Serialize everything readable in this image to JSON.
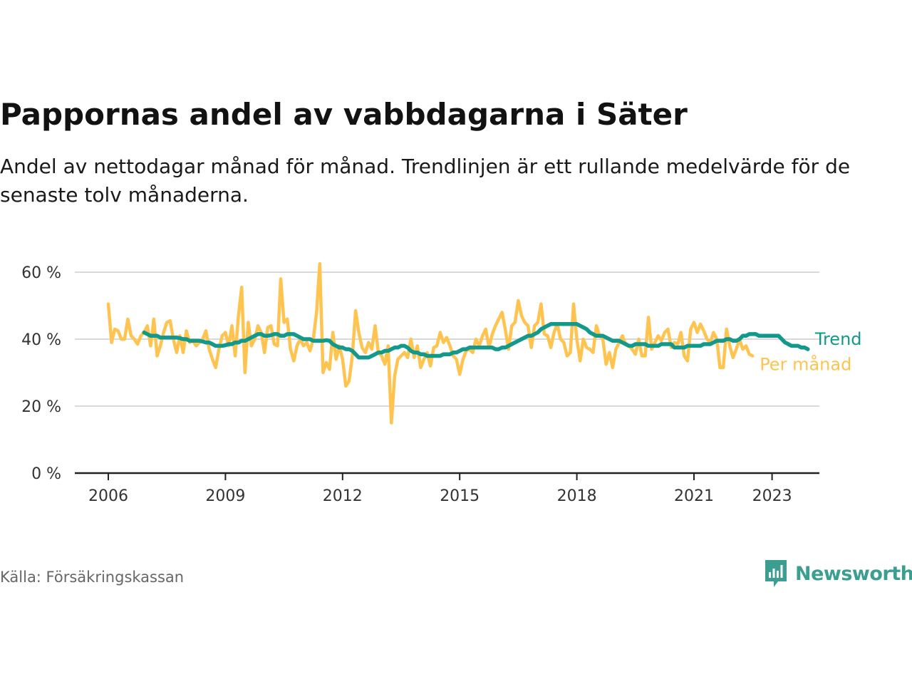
{
  "title": "Pappornas andel av vabbdagarna i Säter",
  "subtitle": "Andel av nettodagar månad för månad. Trendlinjen är ett rullande medelvärde för de senaste tolv månaderna.",
  "source": "Källa: Försäkringskassan",
  "brand": {
    "name": "Newsworthy",
    "color": "#3c9e91",
    "icon": "newsworthy-logo-icon"
  },
  "colors": {
    "trend": "#12998c",
    "monthly": "#fec44f",
    "axis": "#222222",
    "grid": "#d9d9d9"
  },
  "chart_data": {
    "type": "line",
    "title": "Pappornas andel av vabbdagarna i Säter",
    "ylim": [
      0,
      65
    ],
    "yticks": [
      0,
      20,
      40,
      60
    ],
    "ytick_labels": [
      "0 %",
      "20 %",
      "40 %",
      "60 %"
    ],
    "xlim": [
      2005.5,
      2024.0
    ],
    "xticks": [
      2006,
      2009,
      2012,
      2015,
      2018,
      2021,
      2023
    ],
    "xtick_labels": [
      "2006",
      "2009",
      "2012",
      "2015",
      "2018",
      "2021",
      "2023"
    ],
    "grid": true,
    "legend": "right-end labels",
    "series": [
      {
        "name": "Per månad",
        "start": "2006-01",
        "values": [
          50.5,
          39.0,
          43.0,
          42.5,
          40.0,
          40.0,
          46.0,
          41.0,
          40.0,
          38.5,
          41.0,
          42.0,
          44.0,
          38.0,
          46.0,
          35.0,
          38.0,
          42.0,
          45.0,
          45.5,
          40.0,
          36.0,
          41.0,
          36.0,
          42.5,
          39.0,
          39.5,
          38.0,
          39.0,
          40.0,
          42.5,
          37.0,
          34.0,
          31.5,
          37.0,
          41.0,
          42.0,
          38.0,
          44.0,
          35.0,
          47.0,
          55.5,
          30.0,
          45.0,
          38.0,
          40.0,
          44.0,
          42.0,
          36.0,
          43.5,
          44.0,
          38.5,
          38.0,
          58.0,
          45.0,
          46.0,
          37.0,
          33.5,
          38.0,
          40.0,
          38.0,
          39.0,
          36.5,
          40.0,
          48.0,
          62.5,
          30.0,
          33.0,
          31.0,
          42.0,
          34.0,
          38.0,
          34.0,
          26.0,
          27.5,
          35.0,
          48.5,
          42.0,
          37.5,
          36.0,
          39.0,
          37.0,
          44.0,
          36.0,
          35.0,
          32.5,
          38.0,
          15.0,
          29.0,
          34.0,
          35.0,
          36.0,
          34.5,
          40.0,
          34.5,
          38.0,
          31.5,
          34.0,
          36.0,
          32.0,
          37.5,
          38.0,
          42.0,
          39.0,
          40.5,
          38.0,
          35.0,
          34.0,
          29.5,
          34.0,
          36.5,
          37.0,
          36.0,
          40.0,
          38.0,
          41.0,
          43.0,
          37.5,
          41.5,
          44.0,
          46.0,
          48.0,
          43.0,
          37.0,
          44.0,
          45.0,
          51.5,
          47.0,
          45.0,
          44.0,
          37.5,
          44.0,
          45.0,
          50.5,
          41.5,
          41.0,
          37.5,
          42.0,
          44.5,
          40.0,
          39.0,
          35.0,
          36.0,
          50.5,
          40.0,
          33.5,
          40.0,
          37.5,
          37.0,
          36.0,
          44.0,
          41.0,
          40.0,
          32.5,
          36.0,
          31.5,
          37.0,
          39.0,
          41.0,
          38.5,
          38.0,
          37.0,
          35.5,
          40.0,
          35.0,
          35.0,
          46.5,
          37.0,
          39.0,
          41.0,
          39.5,
          42.0,
          43.0,
          37.5,
          39.0,
          38.5,
          42.0,
          35.0,
          33.5,
          43.0,
          45.0,
          42.0,
          44.5,
          42.5,
          40.0,
          39.0,
          42.0,
          40.0,
          31.5,
          31.5,
          43.0,
          38.0,
          34.5,
          37.0,
          40.0,
          37.0,
          38.0,
          35.5,
          35.0
        ]
      },
      {
        "name": "Trend",
        "start": "2006-12",
        "values": [
          42.0,
          41.5,
          41.0,
          41.0,
          41.0,
          40.5,
          40.5,
          40.5,
          40.5,
          40.5,
          40.5,
          40.3,
          40.0,
          40.0,
          39.5,
          39.5,
          39.5,
          39.5,
          39.3,
          39.0,
          39.0,
          38.5,
          38.0,
          38.0,
          38.0,
          38.2,
          38.5,
          38.5,
          39.0,
          39.0,
          39.5,
          39.5,
          40.0,
          40.5,
          41.0,
          41.5,
          41.5,
          41.0,
          41.0,
          41.2,
          41.5,
          41.5,
          41.0,
          41.0,
          41.5,
          41.5,
          41.5,
          41.0,
          40.5,
          40.0,
          40.0,
          40.0,
          39.5,
          39.5,
          39.5,
          39.5,
          39.7,
          39.5,
          38.5,
          38.0,
          37.5,
          37.5,
          37.0,
          37.0,
          36.5,
          35.5,
          34.5,
          34.5,
          34.5,
          34.5,
          35.0,
          35.5,
          36.0,
          36.0,
          36.5,
          36.5,
          37.0,
          37.5,
          37.5,
          38.0,
          38.0,
          37.5,
          36.5,
          36.0,
          36.0,
          35.5,
          35.5,
          35.0,
          35.0,
          35.0,
          35.0,
          35.0,
          35.5,
          35.5,
          35.5,
          36.0,
          36.0,
          36.5,
          37.0,
          37.0,
          37.5,
          37.5,
          37.5,
          37.5,
          37.5,
          37.5,
          37.5,
          37.5,
          37.0,
          37.0,
          37.5,
          37.5,
          38.0,
          38.5,
          39.0,
          39.5,
          40.0,
          40.5,
          41.0,
          41.0,
          41.5,
          42.0,
          43.0,
          43.5,
          44.0,
          44.5,
          44.5,
          44.5,
          44.5,
          44.5,
          44.5,
          44.5,
          44.5,
          44.5,
          44.0,
          43.5,
          43.0,
          42.0,
          41.5,
          41.0,
          41.0,
          41.0,
          40.5,
          40.0,
          39.5,
          39.5,
          39.5,
          39.0,
          38.5,
          38.0,
          38.0,
          38.5,
          38.5,
          38.5,
          38.5,
          38.0,
          38.0,
          38.0,
          38.0,
          38.5,
          38.5,
          38.5,
          38.5,
          37.5,
          37.5,
          37.5,
          37.5,
          38.0,
          38.0,
          38.0,
          38.0,
          38.0,
          38.5,
          38.5,
          38.5,
          39.0,
          39.5,
          39.5,
          39.5,
          40.0,
          40.0,
          39.5,
          39.5,
          40.0,
          41.0,
          41.0,
          41.5,
          41.5,
          41.5,
          41.0,
          41.0,
          41.0,
          41.0,
          41.0,
          41.0,
          41.0,
          40.0,
          39.0,
          38.5,
          38.0,
          38.0,
          38.0,
          37.5,
          37.5,
          37.0
        ]
      }
    ]
  }
}
